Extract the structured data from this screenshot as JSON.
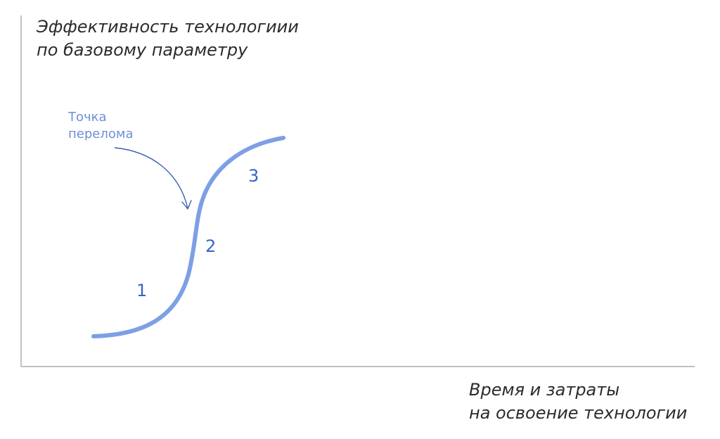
{
  "axis_labels": {
    "y_line1": "Эффективность технологиии",
    "y_line2": "по базовому параметру",
    "x_line1": "Время и затраты",
    "x_line2": "на освоение технологии"
  },
  "annotation": {
    "line1": "Точка",
    "line2": "перелома"
  },
  "stages": [
    "1",
    "2",
    "3"
  ],
  "colors": {
    "curve": "#7d9fe6",
    "arrow": "#3a5fb8",
    "stage_text": "#3563c9",
    "axis": "#9a9a9a",
    "label_text": "#2b2b2b"
  }
}
